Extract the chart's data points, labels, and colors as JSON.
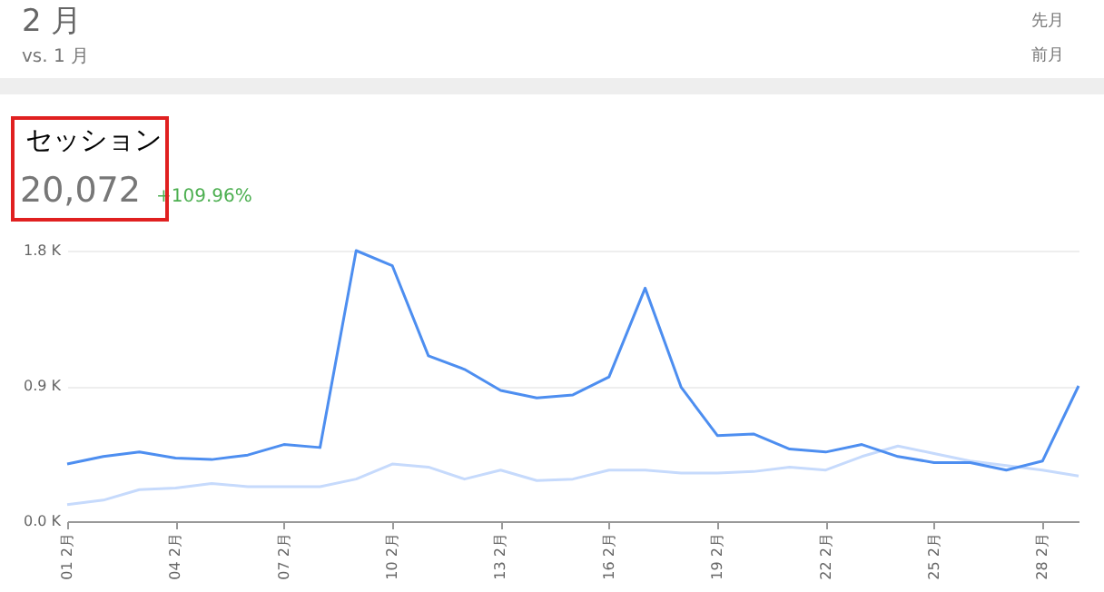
{
  "chart_data": {
    "type": "line",
    "title": "2 月",
    "subtitle": "vs. 1 月",
    "annotations": [
      "先月",
      "前月",
      "セッション",
      "20,072",
      "+109.96%"
    ],
    "categories": [
      "01 2月",
      null,
      null,
      "04 2月",
      null,
      null,
      "07 2月",
      null,
      null,
      "10 2月",
      null,
      null,
      "13 2月",
      null,
      null,
      "16 2月",
      null,
      null,
      "19 2月",
      null,
      null,
      "22 2月",
      null,
      null,
      "25 2月",
      null,
      null,
      "28 2月",
      null
    ],
    "series": [
      {
        "color": "#c6dafc",
        "values": [
          110,
          140,
          210,
          220,
          250,
          230,
          230,
          230,
          280,
          380,
          360,
          280,
          340,
          270,
          280,
          340,
          340,
          320,
          320,
          330,
          360,
          340,
          430,
          500,
          450,
          400,
          370,
          340,
          300
        ]
      },
      {
        "color": "#4d8ef0",
        "values": [
          380,
          430,
          460,
          420,
          410,
          440,
          510,
          490,
          1800,
          1700,
          1100,
          1010,
          870,
          820,
          840,
          960,
          1550,
          890,
          570,
          580,
          480,
          460,
          510,
          430,
          390,
          390,
          340,
          400,
          900
        ]
      }
    ],
    "ylim": [
      0,
      1800
    ],
    "yticks": [
      {
        "value": 0,
        "label": "0.0 K"
      },
      {
        "value": 900,
        "label": "0.9 K"
      },
      {
        "value": 1800,
        "label": "1.8 K"
      }
    ],
    "grid": "y",
    "legend": false,
    "line_style": "solid"
  }
}
